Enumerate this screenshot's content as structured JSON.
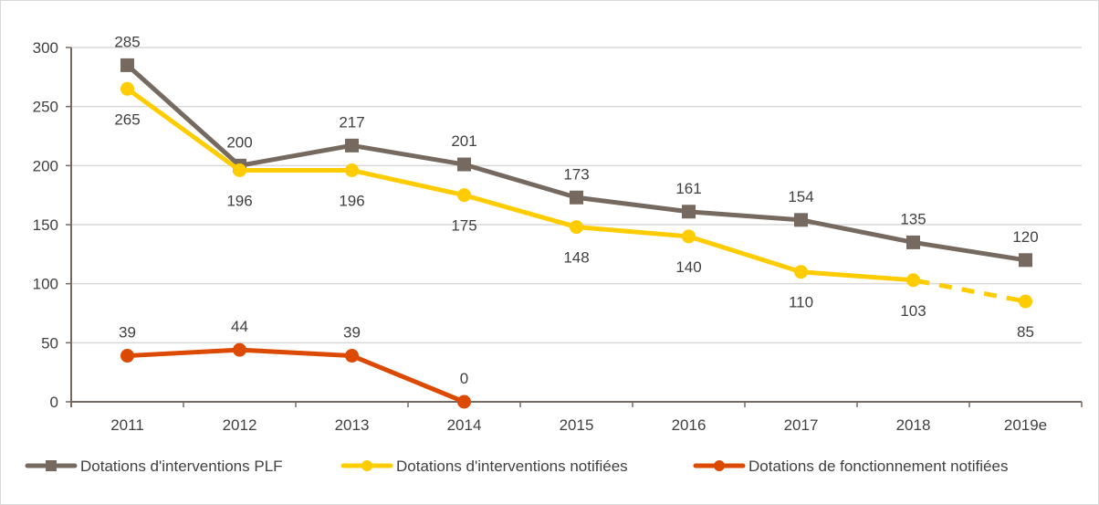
{
  "chart_data": {
    "type": "line",
    "title": "",
    "xlabel": "",
    "ylabel": "",
    "categories": [
      "2011",
      "2012",
      "2013",
      "2014",
      "2015",
      "2016",
      "2017",
      "2018",
      "2019e"
    ],
    "ylim": [
      0,
      300
    ],
    "yticks": [
      0,
      50,
      100,
      150,
      200,
      250,
      300
    ],
    "ytick_labels": [
      "0",
      "50",
      "100",
      "150",
      "200",
      "250",
      "300"
    ],
    "grid": true,
    "legend_position": "bottom",
    "series": [
      {
        "name": "Dotations d'interventions PLF",
        "color": "#766a60",
        "marker": "square",
        "values": [
          285,
          200,
          217,
          201,
          173,
          161,
          154,
          135,
          120
        ],
        "labels": [
          "285",
          "200",
          "217",
          "201",
          "173",
          "161",
          "154",
          "135",
          "120"
        ],
        "label_position": "above",
        "dashed_from_index": null
      },
      {
        "name": "Dotations d'interventions notifiées",
        "color": "#ffcc00",
        "marker": "circle",
        "values": [
          265,
          196,
          196,
          175,
          148,
          140,
          110,
          103,
          85
        ],
        "labels": [
          "265",
          "196",
          "196",
          "175",
          "148",
          "140",
          "110",
          "103",
          "85"
        ],
        "label_position": "below",
        "dashed_from_index": 7
      },
      {
        "name": "Dotations de fonctionnement notifiées",
        "color": "#dc4a02",
        "marker": "circle",
        "values": [
          39,
          44,
          39,
          0,
          null,
          null,
          null,
          null,
          null
        ],
        "labels": [
          "39",
          "44",
          "39",
          "0",
          null,
          null,
          null,
          null,
          null
        ],
        "label_position": "above",
        "dashed_from_index": null
      }
    ]
  }
}
